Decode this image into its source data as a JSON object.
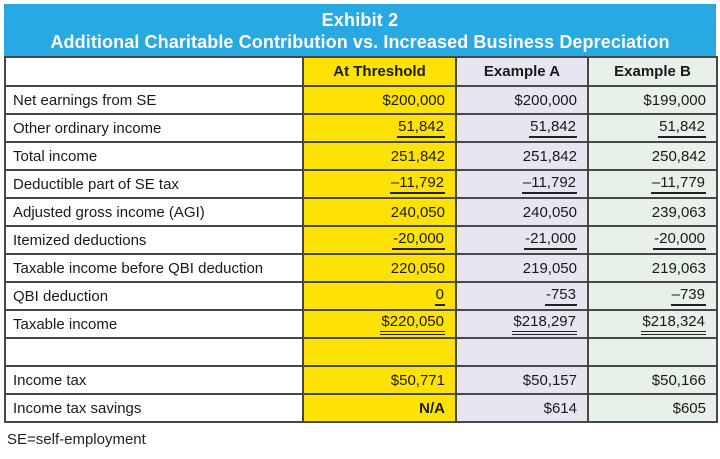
{
  "banner": {
    "title": "Exhibit 2",
    "subtitle": "Additional Charitable Contribution vs. Increased Business Depreciation",
    "bg_color": "#29A9E2",
    "text_color": "#FFFFFF"
  },
  "table": {
    "columns": [
      {
        "label": "",
        "color": "#FFFFFF"
      },
      {
        "label": "At Threshold",
        "color": "#FFE205"
      },
      {
        "label": "Example A",
        "color": "#E8E5F0"
      },
      {
        "label": "Example B",
        "color": "#E8F1E9"
      }
    ],
    "rows": [
      {
        "label": "Net earnings from SE",
        "values": [
          "$200,000",
          "$200,000",
          "$199,000"
        ],
        "underline": "none"
      },
      {
        "label": "Other ordinary income",
        "values": [
          "51,842",
          "51,842",
          "51,842"
        ],
        "underline": "single"
      },
      {
        "label": "Total income",
        "values": [
          "251,842",
          "251,842",
          "250,842"
        ],
        "underline": "none"
      },
      {
        "label": "Deductible part of SE tax",
        "values": [
          "–11,792",
          "–11,792",
          "–11,779"
        ],
        "underline": "single"
      },
      {
        "label": "Adjusted gross income (AGI)",
        "values": [
          "240,050",
          "240,050",
          "239,063"
        ],
        "underline": "none"
      },
      {
        "label": "Itemized deductions",
        "values": [
          "-20,000",
          "-21,000",
          "-20,000"
        ],
        "underline": "single"
      },
      {
        "label": "Taxable income before QBI deduction",
        "values": [
          "220,050",
          "219,050",
          "219,063"
        ],
        "underline": "none"
      },
      {
        "label": "QBI deduction",
        "values": [
          "0",
          "-753",
          "–739"
        ],
        "underline": "single"
      },
      {
        "label": "Taxable income",
        "values": [
          "$220,050",
          "$218,297",
          "$218,324"
        ],
        "underline": "double"
      },
      {
        "label": "",
        "values": [
          "",
          "",
          ""
        ],
        "underline": "none",
        "spacer": true
      },
      {
        "label": "Income tax",
        "values": [
          "$50,771",
          "$50,157",
          "$50,166"
        ],
        "underline": "none"
      },
      {
        "label": "Income tax savings",
        "values": [
          "N/A",
          "$614",
          "$605"
        ],
        "underline": "none",
        "value_bold": [
          true,
          false,
          false
        ]
      }
    ]
  },
  "footnote": "SE=self-employment",
  "colors": {
    "border": "#474747",
    "text": "#1A1A1A"
  }
}
